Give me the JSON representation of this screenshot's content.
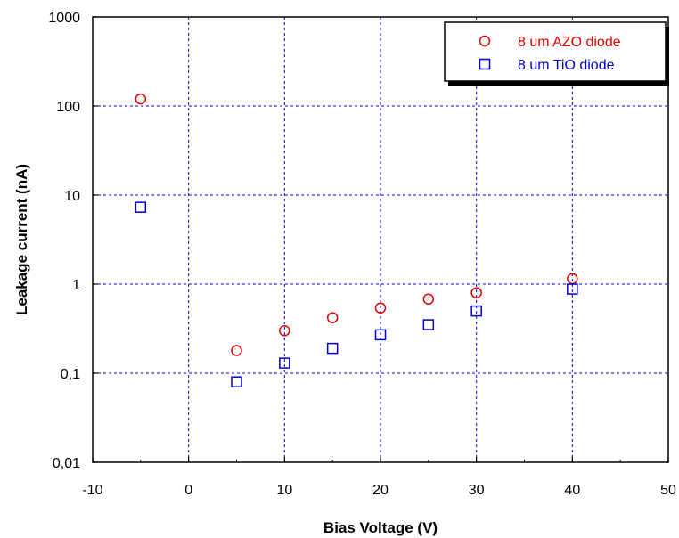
{
  "chart_data": {
    "type": "scatter",
    "xlabel": "Bias Voltage (V)",
    "ylabel": "Leakage current (nA)",
    "xlim": [
      -10,
      50
    ],
    "ylim": [
      0.01,
      1000
    ],
    "yscale": "log",
    "grid": true,
    "legend_position": "top-right",
    "x_ticks": [
      "-10",
      "0",
      "10",
      "20",
      "30",
      "40",
      "50"
    ],
    "y_ticks": [
      "0,01",
      "0,1",
      "1",
      "10",
      "100",
      "1000"
    ],
    "series": [
      {
        "name": "8 um AZO diode",
        "marker": "circle",
        "color": "#e00000",
        "points": [
          [
            -5,
            120
          ],
          [
            5,
            0.18
          ],
          [
            10,
            0.3
          ],
          [
            15,
            0.42
          ],
          [
            20,
            0.54
          ],
          [
            25,
            0.68
          ],
          [
            30,
            0.8
          ],
          [
            40,
            1.15
          ]
        ]
      },
      {
        "name": "8 um TiO diode",
        "marker": "square",
        "color": "#0000cc",
        "points": [
          [
            -5,
            7.3
          ],
          [
            5,
            0.08
          ],
          [
            10,
            0.13
          ],
          [
            15,
            0.19
          ],
          [
            20,
            0.27
          ],
          [
            25,
            0.35
          ],
          [
            30,
            0.5
          ],
          [
            40,
            0.88
          ]
        ]
      }
    ]
  }
}
